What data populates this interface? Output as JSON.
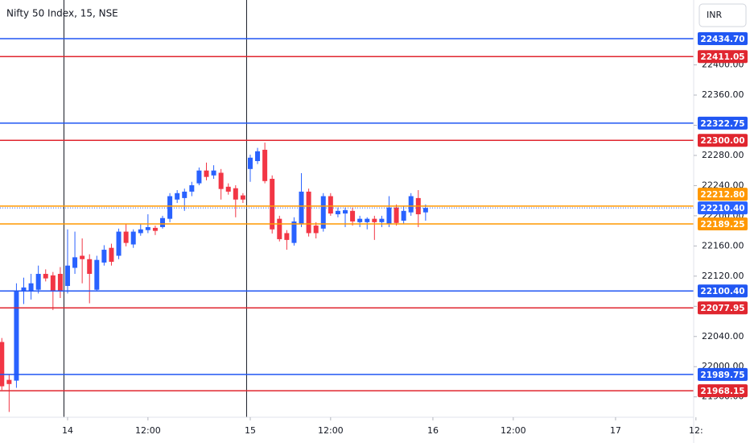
{
  "chart_data": {
    "type": "candlestick",
    "title": "Nifty 50 Index, 15, NSE",
    "currency": "INR",
    "x": [
      -9,
      -8,
      -7,
      -6,
      -5,
      -4,
      -3,
      -2,
      -1,
      0,
      1,
      2,
      3,
      4,
      5,
      6,
      7,
      8,
      9,
      10,
      11,
      12,
      13,
      14,
      15,
      16,
      17,
      18,
      19,
      20,
      21,
      22,
      23,
      24,
      25,
      26,
      27,
      28,
      29,
      30,
      31,
      32,
      33,
      34,
      35,
      36,
      37,
      38,
      39,
      40,
      41,
      42,
      43,
      44,
      45,
      46,
      47,
      48,
      49
    ],
    "open": [
      22032.7,
      21982.5,
      21981.5,
      22100,
      22100,
      22102,
      22123,
      22121,
      22123,
      22107,
      22131,
      22147,
      22142.5,
      22102,
      22138,
      22157.5,
      22147,
      22179,
      22162,
      22177,
      22181,
      22184,
      22185,
      22196,
      22221.5,
      22223.5,
      22232,
      22243,
      22260,
      22253.5,
      22257,
      22238.5,
      22236.5,
      22227,
      22262,
      22272.5,
      22287.5,
      22249,
      22196,
      22177,
      22164,
      22189.5,
      22232,
      22187,
      22183,
      22226,
      22202,
      22203,
      22206.5,
      22191.5,
      22191.5,
      22196,
      22191.5,
      22189.5,
      22211,
      22193.5,
      22204.5,
      22223.5,
      22204.5
    ],
    "high": [
      22038,
      21990,
      22110.5,
      22118,
      22123,
      22134,
      22129,
      22125.5,
      22132,
      22182,
      22179,
      22170,
      22149,
      22147,
      22161,
      22163,
      22183,
      22189.5,
      22182,
      22189.5,
      22202,
      22187,
      22200,
      22230,
      22234,
      22236,
      22245,
      22264,
      22270.5,
      22267,
      22262,
      22243,
      22240.5,
      22230,
      22281,
      22290,
      22297,
      22253.5,
      22200,
      22181,
      22198,
      22256.5,
      22236,
      22191.5,
      22230,
      22230,
      22211,
      22211,
      22211,
      22200,
      22198,
      22200,
      22200,
      22226,
      22215,
      22213,
      22230,
      22234,
      22215
    ],
    "low": [
      21969,
      21940,
      21972,
      22083,
      22089,
      22097,
      22113,
      22075,
      22091,
      22097,
      22123,
      22110.5,
      22084,
      22100,
      22134,
      22134,
      22142.5,
      22159.5,
      22157.5,
      22173.5,
      22177,
      22174.5,
      22183,
      22191.5,
      22217,
      22206.5,
      22226,
      22240.5,
      22247,
      22249,
      22221.5,
      22228,
      22198,
      22217,
      22245,
      22268.5,
      22243,
      22176.5,
      22166,
      22155,
      22160.5,
      22185,
      22172.5,
      22170,
      22179,
      22200,
      22198,
      22185,
      22187,
      22185,
      22182,
      22168,
      22185,
      22185,
      22187,
      22189.5,
      22200,
      22185,
      22193.5
    ],
    "close": [
      21974,
      21977,
      22100,
      22105,
      22110.5,
      22123,
      22117,
      22100,
      22100,
      22134,
      22145,
      22142.5,
      22123,
      22141.5,
      22155,
      22139,
      22179,
      22164,
      22179,
      22182,
      22185,
      22180,
      22197,
      22226,
      22230,
      22232,
      22240.5,
      22260,
      22251.5,
      22260,
      22235.5,
      22232,
      22221.5,
      22221.5,
      22277,
      22285.5,
      22246,
      22182,
      22169,
      22168,
      22192.5,
      22232,
      22177,
      22177,
      22226,
      22203,
      22206.5,
      22207.5,
      22192.5,
      22196,
      22196,
      22191.5,
      22196,
      22211,
      22190.5,
      22206.5,
      22226,
      22202,
      22210.4
    ],
    "up_color": "#2962ff",
    "down_color": "#f23645",
    "xlim": [
      -9.25,
      93.4
    ],
    "ylim": [
      21933,
      22486
    ],
    "xticks": [
      {
        "value": 0,
        "label": "14"
      },
      {
        "value": 11,
        "label": "12:00"
      },
      {
        "value": 25,
        "label": "15"
      },
      {
        "value": 36,
        "label": "12:00"
      },
      {
        "value": 50,
        "label": "16"
      },
      {
        "value": 61,
        "label": "12:00"
      },
      {
        "value": 75,
        "label": "17"
      },
      {
        "value": 86,
        "label": "12:"
      }
    ],
    "yticks": [
      {
        "value": 21960,
        "label": "21960.00"
      },
      {
        "value": 22000,
        "label": "22000.00"
      },
      {
        "value": 22040,
        "label": "22040.00"
      },
      {
        "value": 22080,
        "label": "22080.00"
      },
      {
        "value": 22120,
        "label": "22120.00"
      },
      {
        "value": 22160,
        "label": "22160.00"
      },
      {
        "value": 22200,
        "label": "22200.00"
      },
      {
        "value": 22240,
        "label": "22240.00"
      },
      {
        "value": 22280,
        "label": "22280.00"
      },
      {
        "value": 22320,
        "label": "22320.00"
      },
      {
        "value": 22360,
        "label": "22360.00"
      },
      {
        "value": 22400,
        "label": "22400.00"
      }
    ],
    "price_lines": [
      {
        "value": 22434.7,
        "label": "22434.70",
        "color": "#2157f3"
      },
      {
        "value": 22411.05,
        "label": "22411.05",
        "color": "#e0262f"
      },
      {
        "value": 22322.75,
        "label": "22322.75",
        "color": "#2157f3"
      },
      {
        "value": 22300,
        "label": "22300.00",
        "color": "#e0262f"
      },
      {
        "value": 22212.8,
        "label": "22212.80",
        "color": "#ff9800"
      },
      {
        "value": 22189.25,
        "label": "22189.25",
        "color": "#ff9800"
      },
      {
        "value": 22100.4,
        "label": "22100.40",
        "color": "#2157f3"
      },
      {
        "value": 22077.95,
        "label": "22077.95",
        "color": "#e0262f"
      },
      {
        "value": 21989.75,
        "label": "21989.75",
        "color": "#2157f3"
      },
      {
        "value": 21968.15,
        "label": "21968.15",
        "color": "#e0262f"
      }
    ],
    "last_price": {
      "value": 22210.4,
      "label": "22210.40",
      "color": "#2962ff"
    },
    "vlines": [
      -0.5,
      24.5
    ],
    "vline_color": "#131722"
  }
}
